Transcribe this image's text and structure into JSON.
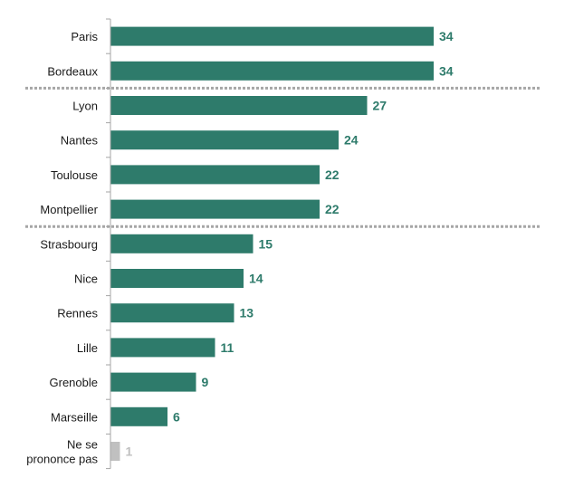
{
  "chart_data": {
    "type": "bar",
    "orientation": "horizontal",
    "categories": [
      "Paris",
      "Bordeaux",
      "Lyon",
      "Nantes",
      "Toulouse",
      "Montpellier",
      "Strasbourg",
      "Nice",
      "Rennes",
      "Lille",
      "Grenoble",
      "Marseille",
      "Ne se prononce pas"
    ],
    "values": [
      34,
      34,
      27,
      24,
      22,
      22,
      15,
      14,
      13,
      11,
      9,
      6,
      1
    ],
    "bar_colors": [
      "#2e7b6b",
      "#2e7b6b",
      "#2e7b6b",
      "#2e7b6b",
      "#2e7b6b",
      "#2e7b6b",
      "#2e7b6b",
      "#2e7b6b",
      "#2e7b6b",
      "#2e7b6b",
      "#2e7b6b",
      "#2e7b6b",
      "#c0c0c0"
    ],
    "label_colors": [
      "#2e7b6b",
      "#2e7b6b",
      "#2e7b6b",
      "#2e7b6b",
      "#2e7b6b",
      "#2e7b6b",
      "#2e7b6b",
      "#2e7b6b",
      "#2e7b6b",
      "#2e7b6b",
      "#2e7b6b",
      "#2e7b6b",
      "#c0c0c0"
    ],
    "separator_after_index": [
      1,
      5
    ],
    "separator_style": "dotted",
    "separator_color": "#a6a6a6",
    "axis_color": "#a6a6a6",
    "xlim": [
      0,
      34
    ],
    "title": "",
    "xlabel": "",
    "ylabel": "",
    "grid": false,
    "legend": "none"
  }
}
